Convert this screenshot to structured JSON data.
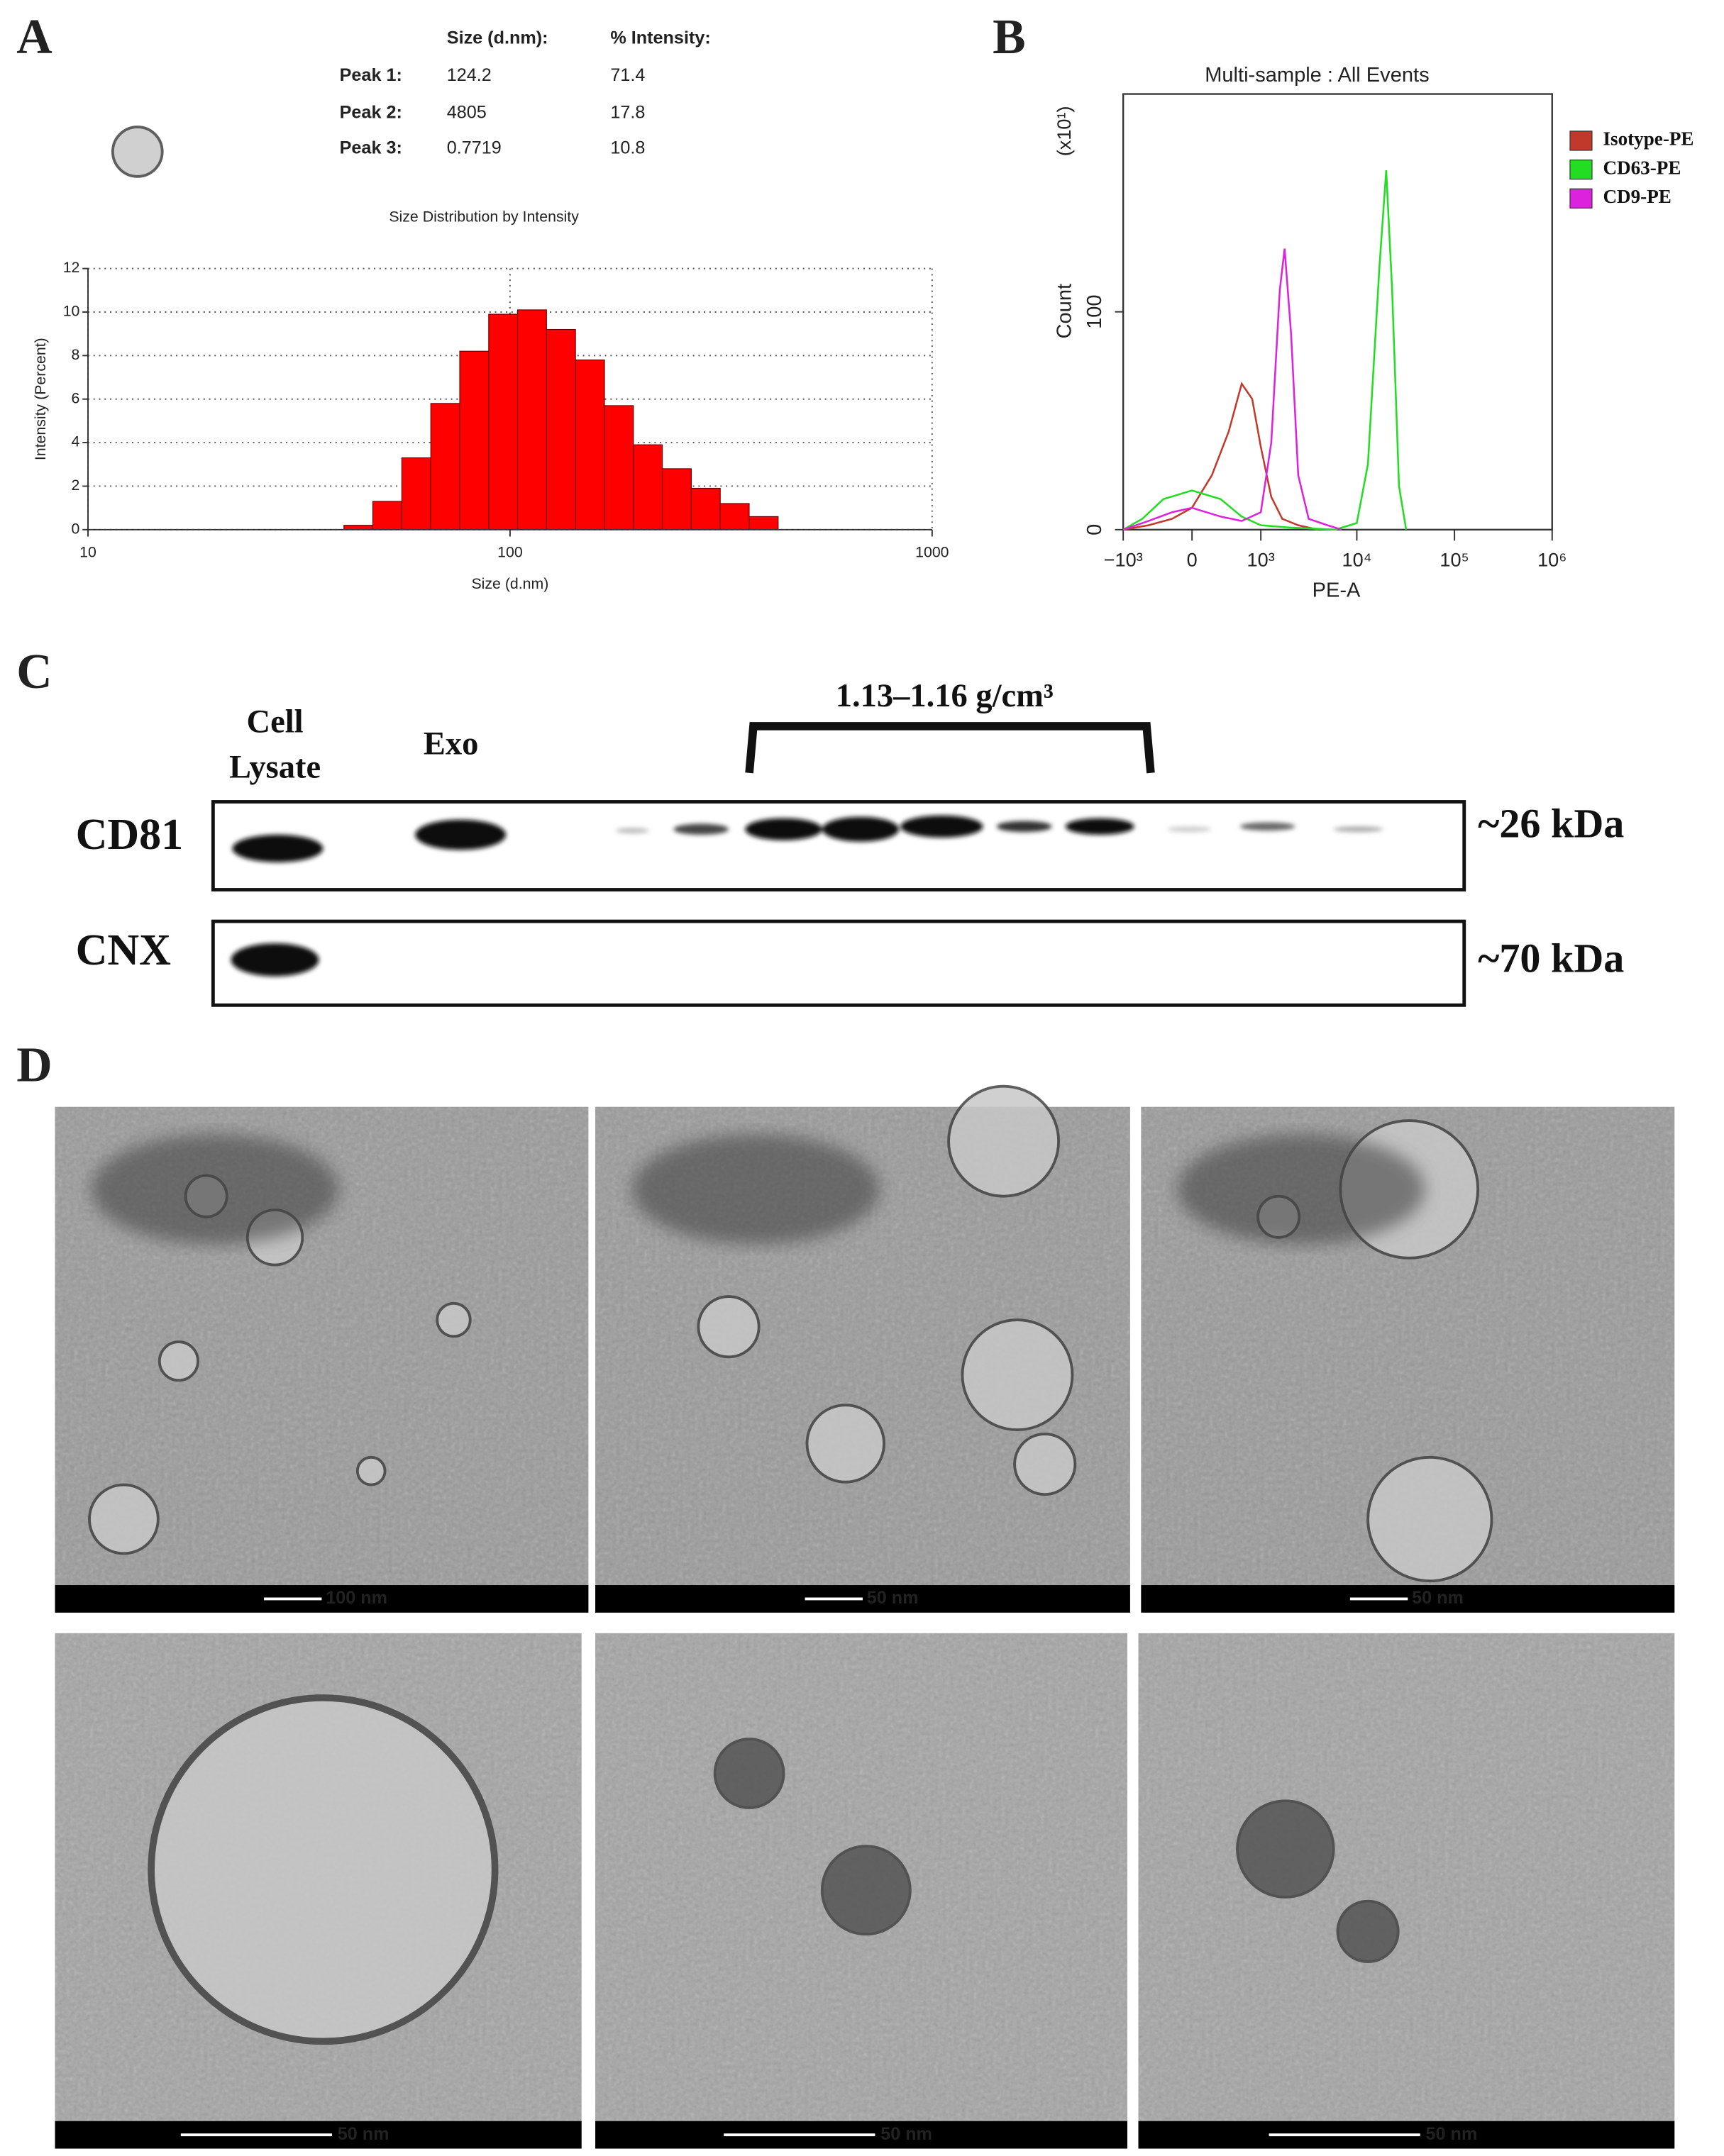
{
  "panel_labels": [
    "A",
    "B",
    "C",
    "D"
  ],
  "table": {
    "columns": [
      "Size (d.nm):",
      "% Intensity:"
    ],
    "rows": [
      [
        "Peak 1:",
        "124.2",
        "71.4"
      ],
      [
        "Peak 2:",
        "4805",
        "17.8"
      ],
      [
        "Peak 3:",
        "0.7719",
        "10.8"
      ]
    ]
  },
  "chart_data": [
    {
      "type": "histogram",
      "title": "Size Distribution by Intensity",
      "x_label": "Size (d.nm)",
      "y_label": "Intensity (Percent)",
      "bins": [
        40.4,
        47.3,
        55.4,
        64.9,
        76.0,
        89.0,
        104.2,
        122.0,
        142.9,
        167.4,
        196.0,
        229.5,
        268.8,
        314.8,
        368.6,
        431.7
      ],
      "values": [
        0.2,
        1.3,
        3.3,
        5.8,
        8.2,
        9.9,
        10.1,
        9.2,
        7.8,
        5.7,
        3.9,
        2.8,
        1.9,
        1.2,
        0.6
      ],
      "color": "#ff0000",
      "xscale": "log",
      "xlim": [
        10,
        1000
      ],
      "xticks": [
        10,
        100,
        1000
      ],
      "ylim": [
        0,
        12
      ],
      "yticks": [
        0,
        2,
        4,
        6,
        8,
        10,
        12
      ],
      "grid": true
    },
    {
      "type": "line",
      "title": "Multi-sample : All Events",
      "x_label": "PE-A",
      "y_label": "Count",
      "y_annotation": "(x10¹)",
      "xscale": "biexponential",
      "xlim": [
        -1000,
        1000000
      ],
      "xticks": [
        {
          "value": -1000,
          "label": "−10³"
        },
        0,
        {
          "value": 1000,
          "label": "10³"
        },
        {
          "value": 10000,
          "label": "10⁴"
        },
        {
          "value": 100000,
          "label": "10⁵"
        },
        {
          "value": 1000000,
          "label": "10⁶"
        }
      ],
      "ylim": [
        0,
        200
      ],
      "yticks": [
        0,
        100
      ],
      "legend": "right",
      "series": [
        {
          "name": "Isotype-PE",
          "color": "#c0392b",
          "x": [
            -1000,
            -500,
            -200,
            0,
            200,
            400,
            600,
            800,
            1000,
            1300,
            1700,
            2500,
            4000
          ],
          "values": [
            0,
            2,
            5,
            10,
            25,
            45,
            67,
            60,
            38,
            15,
            5,
            2,
            0
          ]
        },
        {
          "name": "CD63-PE",
          "color": "#22dd22",
          "x": [
            -1000,
            -600,
            -300,
            0,
            300,
            600,
            1000,
            2000,
            6000,
            10000,
            13000,
            17000,
            20000,
            23000,
            27000,
            32000
          ],
          "values": [
            0,
            5,
            14,
            18,
            14,
            6,
            2,
            1,
            0,
            3,
            30,
            120,
            165,
            110,
            20,
            0
          ]
        },
        {
          "name": "CD9-PE",
          "color": "#dd22dd",
          "x": [
            -1000,
            -500,
            -200,
            0,
            300,
            600,
            1000,
            1300,
            1600,
            1800,
            2100,
            2500,
            3200,
            5000,
            7000
          ],
          "values": [
            0,
            4,
            8,
            10,
            6,
            4,
            8,
            40,
            110,
            129,
            90,
            25,
            5,
            2,
            0
          ]
        }
      ]
    }
  ],
  "blot": {
    "bracket_label": "1.13–1.16 g/cm³",
    "lanes": [
      {
        "lines": [
          "Cell",
          "Lysate"
        ]
      },
      {
        "lines": [
          "Exo"
        ]
      }
    ],
    "rows": [
      {
        "label": "CD81",
        "size": "~26 kDa"
      },
      {
        "label": "CNX",
        "size": "~70 kDa"
      }
    ]
  },
  "tem": {
    "scale_bars": [
      "100 nm",
      "50 nm",
      "50 nm",
      "50 nm",
      "50 nm",
      "50 nm"
    ]
  }
}
